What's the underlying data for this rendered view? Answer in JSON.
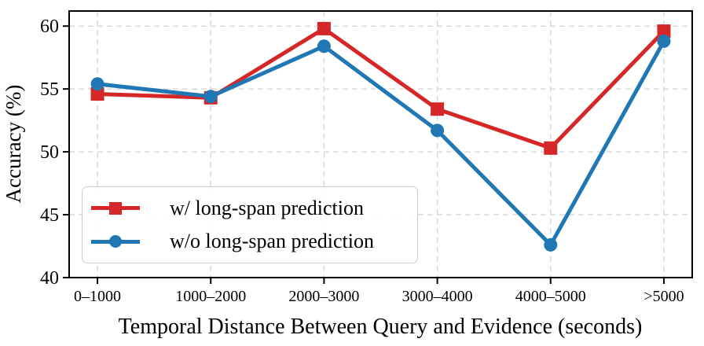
{
  "chart_data": {
    "type": "line",
    "title": "",
    "xlabel": "Temporal Distance Between Query and Evidence (seconds)",
    "ylabel": "Accuracy (%)",
    "categories": [
      "0–1000",
      "1000–2000",
      "2000–3000",
      "3000–4000",
      "4000–5000",
      ">5000"
    ],
    "series": [
      {
        "name": "w/ long-span prediction",
        "color": "#d62728",
        "marker": "square",
        "values": [
          54.6,
          54.3,
          59.8,
          53.4,
          50.3,
          59.6
        ]
      },
      {
        "name": "w/o long-span prediction",
        "color": "#2077b4",
        "marker": "circle",
        "values": [
          55.4,
          54.4,
          58.4,
          51.7,
          42.6,
          58.8
        ]
      }
    ],
    "ylim": [
      40,
      61.2
    ],
    "yticks": [
      40,
      45,
      50,
      55,
      60
    ],
    "grid": true,
    "grid_color": "#d9d9d9",
    "axis_color": "#000000",
    "legend_position": "lower-left"
  }
}
